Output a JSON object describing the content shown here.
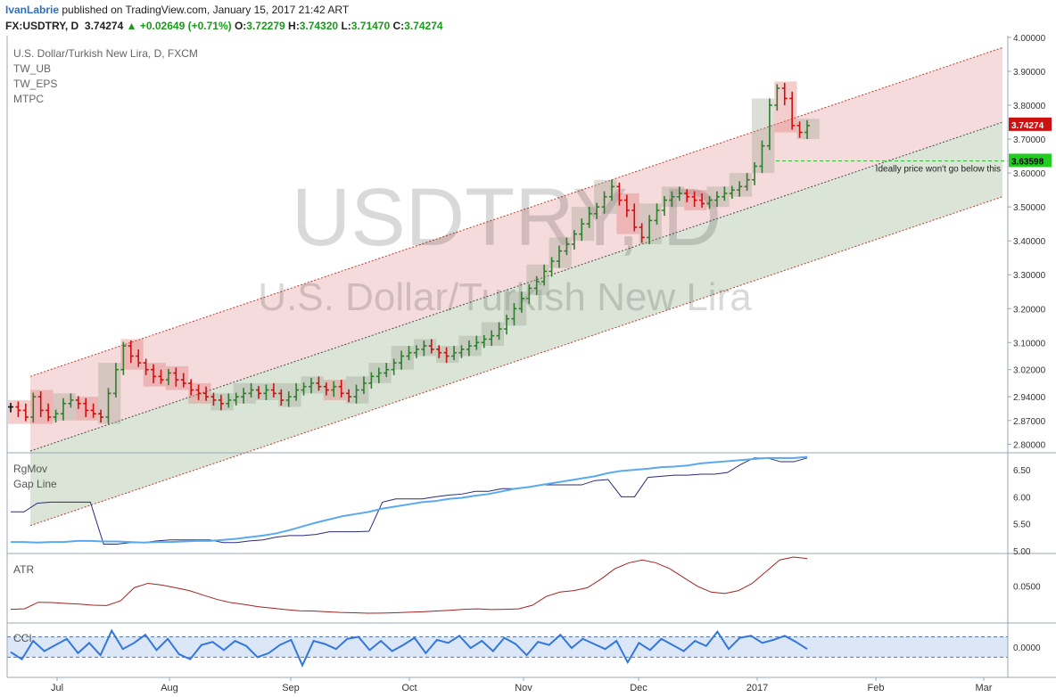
{
  "header": {
    "user": "IvanLabrie",
    "published": "published on TradingView.com, January 15, 2017 21:42 ART",
    "symbol": "FX:USDTRY, D",
    "last": "3.74274",
    "change": "+0.02649 (+0.71%)",
    "open_label": "O:",
    "open": "3.72279",
    "high_label": "H:",
    "high": "3.74320",
    "low_label": "L:",
    "low": "3.71470",
    "close_label": "C:",
    "close": "3.74274"
  },
  "watermark": {
    "big": "USDTRY, D",
    "sub": "U.S. Dollar/Turkish New Lira"
  },
  "main_pane": {
    "title": "U.S. Dollar/Turkish New Lira, D, FXCM",
    "indicators": [
      "TW_UB",
      "TW_EPS",
      "MTPC"
    ],
    "annotation": "Ideally price won't go below this",
    "price_tag": "3.74274",
    "level_tag": "3.63598"
  },
  "colors": {
    "up": "#2f7d2f",
    "down": "#cc1111",
    "neutral": "#111111",
    "upper_band": "#f3d5d5",
    "lower_band": "#d4dfd0",
    "rgmov": "#2a2a7a",
    "gap": "#5aa9f0",
    "atr": "#a82020",
    "cci": "#3377dd"
  },
  "chart_data": [
    {
      "type": "line",
      "title": "U.S. Dollar/Turkish New Lira, D, FXCM",
      "x_ticks": [
        "Jul",
        "Aug",
        "Sep",
        "Oct",
        "Nov",
        "Dec",
        "2017",
        "Feb",
        "Mar"
      ],
      "y_ticks": [
        "4.00000",
        "3.90000",
        "3.80000",
        "3.70000",
        "3.60000",
        "3.50000",
        "3.40000",
        "3.30000",
        "3.20000",
        "3.10000",
        "3.02000",
        "2.94000",
        "2.87000",
        "2.80000"
      ],
      "ylim": [
        2.78,
        4.0
      ],
      "closes": [
        2.91,
        2.9,
        2.88,
        2.94,
        2.9,
        2.88,
        2.89,
        2.92,
        2.93,
        2.92,
        2.9,
        2.89,
        2.88,
        2.95,
        3.02,
        3.09,
        3.06,
        3.04,
        3.02,
        3.0,
        2.99,
        3.01,
        2.99,
        2.98,
        2.96,
        2.95,
        2.94,
        2.93,
        2.92,
        2.93,
        2.94,
        2.95,
        2.96,
        2.95,
        2.96,
        2.95,
        2.93,
        2.94,
        2.96,
        2.97,
        2.98,
        2.97,
        2.96,
        2.97,
        2.95,
        2.94,
        2.96,
        2.98,
        3.0,
        3.01,
        3.02,
        3.04,
        3.06,
        3.07,
        3.08,
        3.09,
        3.08,
        3.07,
        3.06,
        3.07,
        3.08,
        3.09,
        3.1,
        3.11,
        3.12,
        3.14,
        3.17,
        3.2,
        3.23,
        3.26,
        3.28,
        3.31,
        3.34,
        3.37,
        3.39,
        3.42,
        3.45,
        3.48,
        3.5,
        3.53,
        3.56,
        3.52,
        3.49,
        3.44,
        3.41,
        3.46,
        3.49,
        3.52,
        3.53,
        3.54,
        3.53,
        3.52,
        3.51,
        3.52,
        3.53,
        3.54,
        3.55,
        3.56,
        3.58,
        3.62,
        3.68,
        3.8,
        3.85,
        3.82,
        3.74,
        3.72,
        3.74
      ],
      "series": []
    },
    {
      "type": "line",
      "title": "RgMov Gap Line",
      "y_ticks": [
        "6.50",
        "6.00",
        "5.50",
        "5.00"
      ],
      "ylim": [
        4.98,
        6.75
      ],
      "series": [
        {
          "name": "RgMov",
          "values": [
            5.72,
            5.72,
            5.88,
            5.9,
            5.9,
            5.9,
            5.9,
            5.12,
            5.12,
            5.15,
            5.15,
            5.18,
            5.2,
            5.2,
            5.2,
            5.2,
            5.15,
            5.15,
            5.18,
            5.2,
            5.25,
            5.28,
            5.28,
            5.3,
            5.35,
            5.35,
            5.35,
            5.36,
            5.9,
            5.96,
            5.96,
            5.96,
            6.0,
            6.03,
            6.05,
            6.1,
            6.1,
            6.15,
            6.15,
            6.18,
            6.22,
            6.22,
            6.22,
            6.22,
            6.3,
            6.32,
            6.0,
            6.0,
            6.36,
            6.38,
            6.4,
            6.4,
            6.42,
            6.42,
            6.45,
            6.6,
            6.72,
            6.72,
            6.65,
            6.65,
            6.72
          ]
        },
        {
          "name": "Gap Line",
          "values": [
            5.16,
            5.16,
            5.15,
            5.16,
            5.16,
            5.18,
            5.18,
            5.17,
            5.17,
            5.16,
            5.15,
            5.16,
            5.16,
            5.17,
            5.18,
            5.18,
            5.2,
            5.22,
            5.25,
            5.28,
            5.32,
            5.38,
            5.45,
            5.52,
            5.58,
            5.64,
            5.68,
            5.72,
            5.78,
            5.82,
            5.86,
            5.9,
            5.92,
            5.96,
            5.98,
            6.02,
            6.05,
            6.1,
            6.15,
            6.18,
            6.22,
            6.26,
            6.3,
            6.34,
            6.38,
            6.44,
            6.48,
            6.5,
            6.52,
            6.55,
            6.56,
            6.58,
            6.62,
            6.64,
            6.66,
            6.68,
            6.7,
            6.72,
            6.72,
            6.72,
            6.74
          ]
        }
      ]
    },
    {
      "type": "line",
      "title": "ATR",
      "y_ticks": [
        "0.0500"
      ],
      "ylim": [
        0.026,
        0.07
      ],
      "series": [
        {
          "name": "ATR",
          "values": [
            0.0342,
            0.0345,
            0.039,
            0.0388,
            0.0382,
            0.0378,
            0.037,
            0.0368,
            0.04,
            0.049,
            0.052,
            0.0508,
            0.049,
            0.047,
            0.044,
            0.041,
            0.0388,
            0.0375,
            0.036,
            0.035,
            0.034,
            0.0332,
            0.033,
            0.0325,
            0.032,
            0.0318,
            0.0315,
            0.0316,
            0.0318,
            0.0322,
            0.0325,
            0.033,
            0.0335,
            0.0342,
            0.0345,
            0.034,
            0.0342,
            0.0345,
            0.037,
            0.043,
            0.046,
            0.047,
            0.049,
            0.055,
            0.062,
            0.066,
            0.068,
            0.066,
            0.062,
            0.056,
            0.05,
            0.046,
            0.045,
            0.047,
            0.052,
            0.06,
            0.068,
            0.07,
            0.069
          ]
        }
      ]
    },
    {
      "type": "line",
      "title": "CCI",
      "y_ticks": [
        "0.0000"
      ],
      "ylim": [
        -280,
        200
      ],
      "series": [
        {
          "name": "CCI",
          "values": [
            -50,
            -120,
            60,
            -40,
            20,
            80,
            -60,
            40,
            -80,
            160,
            -20,
            40,
            120,
            -30,
            80,
            -70,
            -120,
            20,
            50,
            -30,
            60,
            10,
            -100,
            -60,
            20,
            70,
            -180,
            60,
            30,
            -20,
            80,
            100,
            -30,
            60,
            -40,
            20,
            90,
            -60,
            70,
            40,
            110,
            -10,
            60,
            -40,
            90,
            30,
            -80,
            50,
            20,
            120,
            -10,
            80,
            30,
            -20,
            60,
            -150,
            40,
            -30,
            80,
            20,
            -40,
            60,
            10,
            150,
            -20,
            90,
            110,
            40,
            70,
            110,
            50,
            -20
          ]
        }
      ]
    }
  ]
}
